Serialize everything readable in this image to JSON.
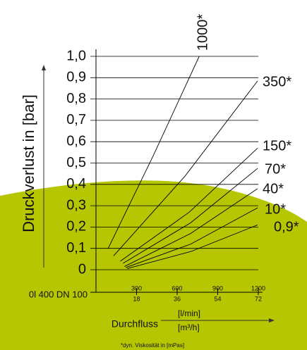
{
  "chart_data": {
    "type": "line",
    "ylabel": "Druckverlust in [bar]",
    "xlabel": "Durchfluss",
    "xunit": "[l/min]",
    "x2unit": "[m³/h]",
    "annotations": [
      "0l 400 DN 100",
      "*dyn. Viskosität in [mPas]"
    ],
    "xlim": [
      0,
      1200
    ],
    "xticks": [
      300,
      600,
      900,
      1200
    ],
    "x2lim": [
      0,
      72
    ],
    "x2ticks": [
      18,
      36,
      54,
      72
    ],
    "ylim": [
      0,
      1.0
    ],
    "yticks": [
      0,
      {
        "value": 0.1,
        "label": "0,1"
      },
      {
        "value": 0.2,
        "label": "0,2"
      },
      {
        "value": 0.3,
        "label": "0,3"
      },
      {
        "value": 0.4,
        "label": "0,4"
      },
      {
        "value": 0.5,
        "label": "0,5"
      },
      {
        "value": 0.6,
        "label": "0,6"
      },
      {
        "value": 0.7,
        "label": "0,7"
      },
      {
        "value": 0.8,
        "label": "0,8"
      },
      {
        "value": 0.9,
        "label": "0,9"
      },
      {
        "value": 1.0,
        "label": "1,0"
      }
    ],
    "grid": true,
    "series": [
      {
        "name": "1000*",
        "color": "#000000",
        "x": [
          90,
          420,
          763
        ],
        "values": [
          0.1,
          0.53,
          1.0
        ]
      },
      {
        "name": "350*",
        "color": "#000000",
        "x": [
          130,
          660,
          1195
        ],
        "values": [
          0.065,
          0.44,
          0.885
        ]
      },
      {
        "name": "150*",
        "color": "#000000",
        "x": [
          180,
          690,
          1195
        ],
        "values": [
          0.04,
          0.27,
          0.57
        ]
      },
      {
        "name": "70*",
        "color": "#000000",
        "x": [
          200,
          700,
          1195
        ],
        "values": [
          0.03,
          0.22,
          0.475
        ]
      },
      {
        "name": "40*",
        "color": "#000000",
        "x": [
          210,
          700,
          1195
        ],
        "values": [
          0.015,
          0.17,
          0.38
        ]
      },
      {
        "name": "10*",
        "color": "#000000",
        "x": [
          220,
          700,
          1195
        ],
        "values": [
          0.01,
          0.12,
          0.29
        ]
      },
      {
        "name": "0,9*",
        "color": "#000000",
        "x": [
          230,
          700,
          1195
        ],
        "values": [
          0.005,
          0.085,
          0.21
        ]
      }
    ]
  }
}
